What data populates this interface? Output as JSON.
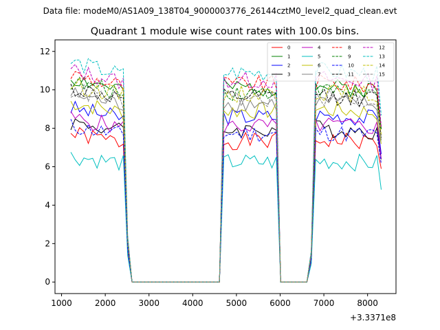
{
  "suptitle": "Data file: modeM0/AS1A09_138T04_9000003776_26144cztM0_level2_quad_clean.evt",
  "chart_data": {
    "type": "line",
    "title": "Quadrant 1 module wise count rates with 100.0s bins.",
    "xlabel": "",
    "ylabel": "",
    "offset_label": "+3.3371e8",
    "xlim": [
      850,
      8650
    ],
    "ylim": [
      -0.6,
      12.6
    ],
    "xticks": [
      1000,
      2000,
      3000,
      4000,
      5000,
      6000,
      7000,
      8000
    ],
    "yticks": [
      0,
      2,
      4,
      6,
      8,
      10,
      12
    ],
    "legend_position": "top-right",
    "segments": [
      {
        "start": 1212,
        "bins": 13
      },
      {
        "start": 2512,
        "bins": 2
      },
      {
        "start": 2612,
        "bins": 21
      },
      {
        "start": 4712,
        "bins": 13
      },
      {
        "start": 6012,
        "bins": 7
      },
      {
        "start": 6712,
        "bins": 2
      },
      {
        "start": 6812,
        "bins": 16
      }
    ],
    "series": [
      {
        "name": "0",
        "color": "#ff0000",
        "dash": false,
        "level": 7.4,
        "seed": 1
      },
      {
        "name": "1",
        "color": "#008000",
        "dash": false,
        "level": 10.2,
        "seed": 2
      },
      {
        "name": "2",
        "color": "#0000ff",
        "dash": false,
        "level": 8.7,
        "seed": 3
      },
      {
        "name": "3",
        "color": "#000000",
        "dash": false,
        "level": 8.0,
        "seed": 4
      },
      {
        "name": "4",
        "color": "#bf00bf",
        "dash": false,
        "level": 8.2,
        "seed": 5
      },
      {
        "name": "5",
        "color": "#00bfbf",
        "dash": false,
        "level": 6.3,
        "seed": 6
      },
      {
        "name": "6",
        "color": "#bfbf00",
        "dash": false,
        "level": 9.0,
        "seed": 7
      },
      {
        "name": "7",
        "color": "#808080",
        "dash": false,
        "level": 9.4,
        "seed": 8
      },
      {
        "name": "8",
        "color": "#ff0000",
        "dash": true,
        "level": 10.4,
        "seed": 9
      },
      {
        "name": "9",
        "color": "#008000",
        "dash": true,
        "level": 10.0,
        "seed": 10
      },
      {
        "name": "10",
        "color": "#0000ff",
        "dash": true,
        "level": 7.8,
        "seed": 11
      },
      {
        "name": "11",
        "color": "#000000",
        "dash": true,
        "level": 9.7,
        "seed": 12
      },
      {
        "name": "12",
        "color": "#bf00bf",
        "dash": true,
        "level": 10.6,
        "seed": 13
      },
      {
        "name": "13",
        "color": "#00bfbf",
        "dash": true,
        "level": 11.0,
        "seed": 14
      },
      {
        "name": "14",
        "color": "#bfbf00",
        "dash": true,
        "level": 9.9,
        "seed": 15
      },
      {
        "name": "15",
        "color": "#808080",
        "dash": true,
        "level": 9.6,
        "seed": 16
      }
    ]
  }
}
